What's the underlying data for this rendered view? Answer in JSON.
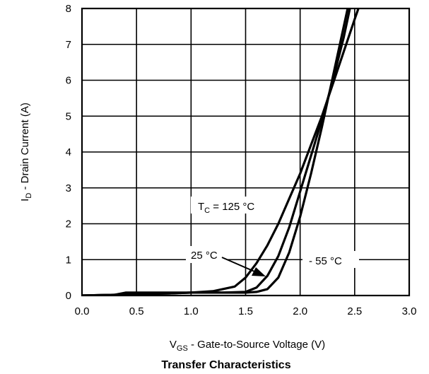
{
  "chart_data": {
    "type": "line",
    "title": "Transfer Characteristics",
    "xlabel": {
      "main": "V",
      "sub": "GS",
      "rest": " - Gate-to-Source Voltage (V)"
    },
    "ylabel": {
      "main": "I",
      "sub": "D",
      "rest": " - Drain Current (A)"
    },
    "xlim": [
      0,
      3
    ],
    "ylim": [
      0,
      8
    ],
    "x_ticks": [
      "0.0",
      "0.5",
      "1.0",
      "1.5",
      "2.0",
      "2.5",
      "3.0"
    ],
    "y_ticks": [
      "0",
      "1",
      "2",
      "3",
      "4",
      "5",
      "6",
      "7",
      "8"
    ],
    "grid": true,
    "series": [
      {
        "name": "TC = 125 °C",
        "x": [
          0.0,
          0.3,
          0.5,
          0.8,
          1.0,
          1.2,
          1.4,
          1.5,
          1.6,
          1.7,
          1.8,
          1.9,
          2.0,
          2.1,
          2.2,
          2.3,
          2.4,
          2.5,
          2.58
        ],
        "y": [
          0.0,
          0.02,
          0.04,
          0.06,
          0.08,
          0.12,
          0.25,
          0.5,
          0.9,
          1.4,
          2.0,
          2.7,
          3.4,
          4.2,
          5.0,
          5.9,
          6.8,
          7.7,
          8.4
        ]
      },
      {
        "name": "25 °C",
        "x": [
          0.0,
          0.3,
          0.4,
          0.8,
          1.0,
          1.3,
          1.5,
          1.6,
          1.7,
          1.8,
          1.9,
          2.0,
          2.1,
          2.2,
          2.3,
          2.4,
          2.47
        ],
        "y": [
          0.0,
          0.02,
          0.08,
          0.08,
          0.08,
          0.08,
          0.1,
          0.22,
          0.55,
          1.1,
          1.9,
          2.9,
          3.9,
          4.9,
          6.0,
          7.2,
          8.2
        ]
      },
      {
        "name": "- 55 °C",
        "x": [
          0.0,
          0.3,
          0.5,
          0.8,
          1.0,
          1.3,
          1.5,
          1.6,
          1.7,
          1.8,
          1.9,
          2.0,
          2.1,
          2.2,
          2.3,
          2.4,
          2.45
        ],
        "y": [
          0.0,
          0.02,
          0.04,
          0.06,
          0.08,
          0.08,
          0.08,
          0.1,
          0.18,
          0.5,
          1.2,
          2.2,
          3.4,
          4.7,
          6.1,
          7.5,
          8.2
        ]
      }
    ],
    "annotations": [
      {
        "main": "T",
        "sub": "C",
        "rest": " = 125 °C"
      },
      {
        "text": "25 °C"
      },
      {
        "text": "- 55 °C"
      }
    ]
  }
}
